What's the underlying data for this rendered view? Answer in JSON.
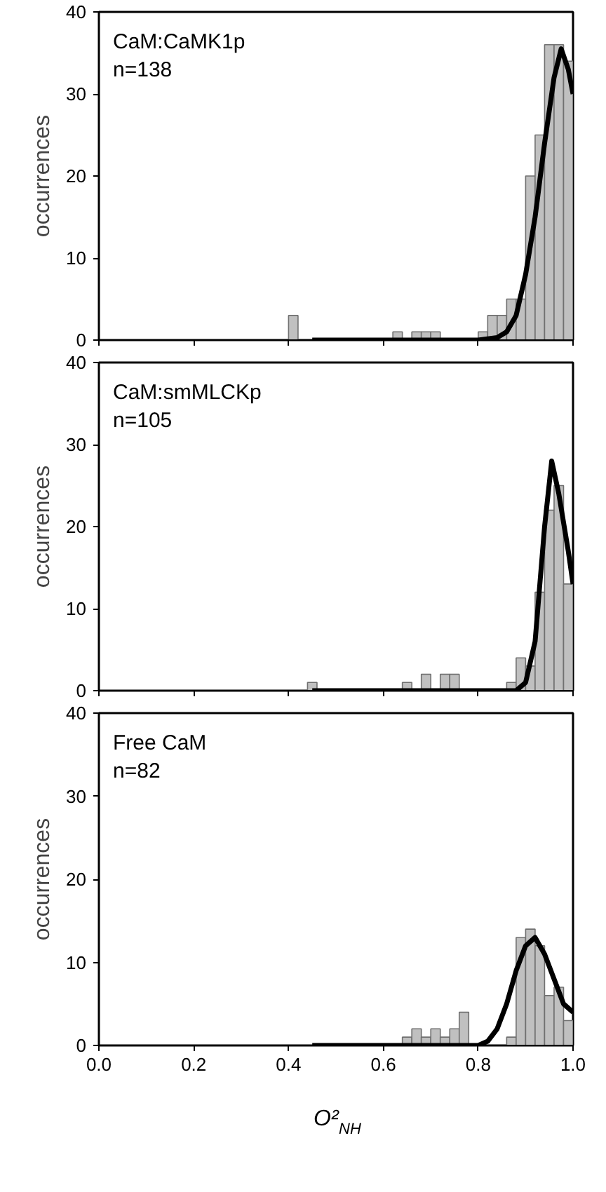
{
  "chart_data": [
    {
      "type": "histogram",
      "annotations": [
        "CaM:CaMK1p",
        "n=138"
      ],
      "ylabel": "occurrences",
      "bins": [
        0.4,
        0.42,
        0.44,
        0.46,
        0.48,
        0.5,
        0.52,
        0.54,
        0.56,
        0.58,
        0.6,
        0.62,
        0.64,
        0.66,
        0.68,
        0.7,
        0.72,
        0.74,
        0.76,
        0.78,
        0.8,
        0.82,
        0.84,
        0.86,
        0.88,
        0.9,
        0.92,
        0.94,
        0.96,
        0.98,
        1.0
      ],
      "values": [
        3,
        0,
        0,
        0,
        0,
        0,
        0,
        0,
        0,
        0,
        0,
        1,
        0,
        1,
        1,
        1,
        0,
        0,
        0,
        0,
        1,
        3,
        3,
        5,
        5,
        20,
        25,
        36,
        36,
        34
      ],
      "color": "#c0c0c0",
      "xlim": [
        0.0,
        1.0
      ],
      "xticks": [
        0.0,
        0.2,
        0.4,
        0.6,
        0.8,
        1.0
      ],
      "ylim": [
        0,
        40
      ],
      "yticks": [
        0,
        10,
        20,
        30,
        40
      ],
      "tick_labels": "y",
      "series": [
        {
          "type": "line",
          "color": "#000000",
          "x": [
            0.45,
            0.6,
            0.8,
            0.84,
            0.86,
            0.88,
            0.9,
            0.92,
            0.94,
            0.96,
            0.975,
            0.99,
            1.0
          ],
          "values": [
            0,
            0,
            0,
            0.3,
            1,
            3,
            8,
            15,
            24,
            32,
            35.5,
            33,
            30
          ]
        }
      ]
    },
    {
      "type": "histogram",
      "annotations": [
        "CaM:smMLCKp",
        "n=105"
      ],
      "ylabel": "occurrences",
      "bins": [
        0.4,
        0.42,
        0.44,
        0.46,
        0.48,
        0.5,
        0.52,
        0.54,
        0.56,
        0.58,
        0.6,
        0.62,
        0.64,
        0.66,
        0.68,
        0.7,
        0.72,
        0.74,
        0.76,
        0.78,
        0.8,
        0.82,
        0.84,
        0.86,
        0.88,
        0.9,
        0.92,
        0.94,
        0.96,
        0.98,
        1.0
      ],
      "values": [
        0,
        0,
        1,
        0,
        0,
        0,
        0,
        0,
        0,
        0,
        0,
        0,
        1,
        0,
        2,
        0,
        2,
        2,
        0,
        0,
        0,
        0,
        0,
        1,
        4,
        3,
        12,
        22,
        25,
        13
      ],
      "color": "#c0c0c0",
      "xlim": [
        0.0,
        1.0
      ],
      "xticks": [
        0.0,
        0.2,
        0.4,
        0.6,
        0.8,
        1.0
      ],
      "ylim": [
        0,
        40
      ],
      "yticks": [
        0,
        10,
        20,
        30,
        40
      ],
      "tick_labels": "y",
      "series": [
        {
          "type": "line",
          "color": "#000000",
          "x": [
            0.45,
            0.6,
            0.8,
            0.88,
            0.9,
            0.92,
            0.94,
            0.955,
            0.97,
            0.99,
            1.0
          ],
          "values": [
            0,
            0,
            0,
            0,
            1,
            6,
            20,
            28,
            24,
            17,
            13
          ]
        }
      ]
    },
    {
      "type": "histogram",
      "annotations": [
        "Free CaM",
        "n=82"
      ],
      "ylabel": "occurrences",
      "xlabel": "O²$_{NH}$",
      "bins": [
        0.4,
        0.42,
        0.44,
        0.46,
        0.48,
        0.5,
        0.52,
        0.54,
        0.56,
        0.58,
        0.6,
        0.62,
        0.64,
        0.66,
        0.68,
        0.7,
        0.72,
        0.74,
        0.76,
        0.78,
        0.8,
        0.82,
        0.84,
        0.86,
        0.88,
        0.9,
        0.92,
        0.94,
        0.96,
        0.98,
        1.0
      ],
      "values": [
        0,
        0,
        0,
        0,
        0,
        0,
        0,
        0,
        0,
        0,
        0,
        0,
        1,
        2,
        1,
        2,
        1,
        2,
        4,
        0,
        0,
        0,
        0,
        1,
        13,
        14,
        12,
        6,
        7,
        3
      ],
      "color": "#c0c0c0",
      "xlim": [
        0.0,
        1.0
      ],
      "xticks": [
        {
          "value": 0.0,
          "label": "0.0"
        },
        0.2,
        0.4,
        0.6,
        0.8,
        {
          "value": 1.0,
          "label": "1.0"
        }
      ],
      "ylim": [
        0,
        40
      ],
      "yticks": [
        0,
        10,
        20,
        30,
        40
      ],
      "series": [
        {
          "type": "line",
          "color": "#000000",
          "x": [
            0.45,
            0.6,
            0.8,
            0.82,
            0.84,
            0.86,
            0.88,
            0.9,
            0.92,
            0.94,
            0.96,
            0.98,
            1.0
          ],
          "values": [
            0,
            0,
            0,
            0.5,
            2,
            5,
            9,
            12,
            13,
            11,
            8,
            5,
            4
          ]
        }
      ]
    }
  ]
}
